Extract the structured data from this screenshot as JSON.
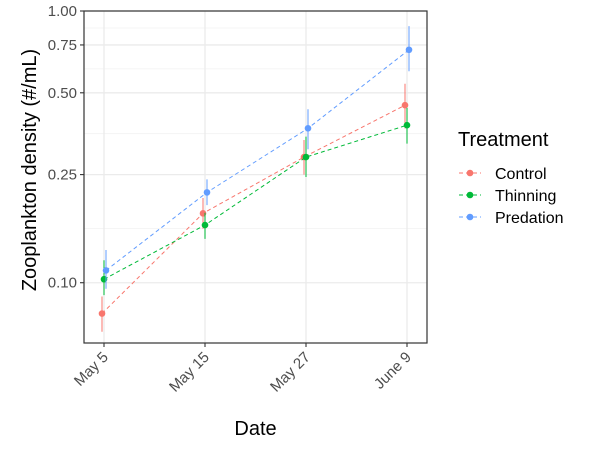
{
  "chart_data": {
    "type": "scatter",
    "title": "",
    "xlabel": "Date",
    "ylabel": "Zooplankton density (#/mL)",
    "y_scale": "log",
    "ylim": [
      0.06,
      1.0
    ],
    "y_ticks": [
      0.1,
      0.25,
      0.5,
      0.75,
      1.0
    ],
    "y_tick_labels": [
      "0.10",
      "0.25",
      "0.50",
      "0.75",
      "1.00"
    ],
    "categories": [
      "May 5",
      "May 15",
      "May 27",
      "June 9"
    ],
    "grid": true,
    "legend_position": "right",
    "legend_title": "Treatment",
    "series": [
      {
        "name": "Control",
        "color": "#F8766D",
        "values": [
          0.077,
          0.18,
          0.29,
          0.45
        ],
        "err_low": [
          0.066,
          0.158,
          0.25,
          0.37
        ],
        "err_high": [
          0.089,
          0.205,
          0.335,
          0.54
        ]
      },
      {
        "name": "Thinning",
        "color": "#00BA38",
        "values": [
          0.103,
          0.163,
          0.29,
          0.38
        ],
        "err_low": [
          0.09,
          0.145,
          0.245,
          0.325
        ],
        "err_high": [
          0.121,
          0.181,
          0.345,
          0.44
        ]
      },
      {
        "name": "Predation",
        "color": "#619CFF",
        "values": [
          0.111,
          0.215,
          0.37,
          0.72
        ],
        "err_low": [
          0.095,
          0.193,
          0.31,
          0.6
        ],
        "err_high": [
          0.132,
          0.24,
          0.435,
          0.88
        ]
      }
    ]
  }
}
